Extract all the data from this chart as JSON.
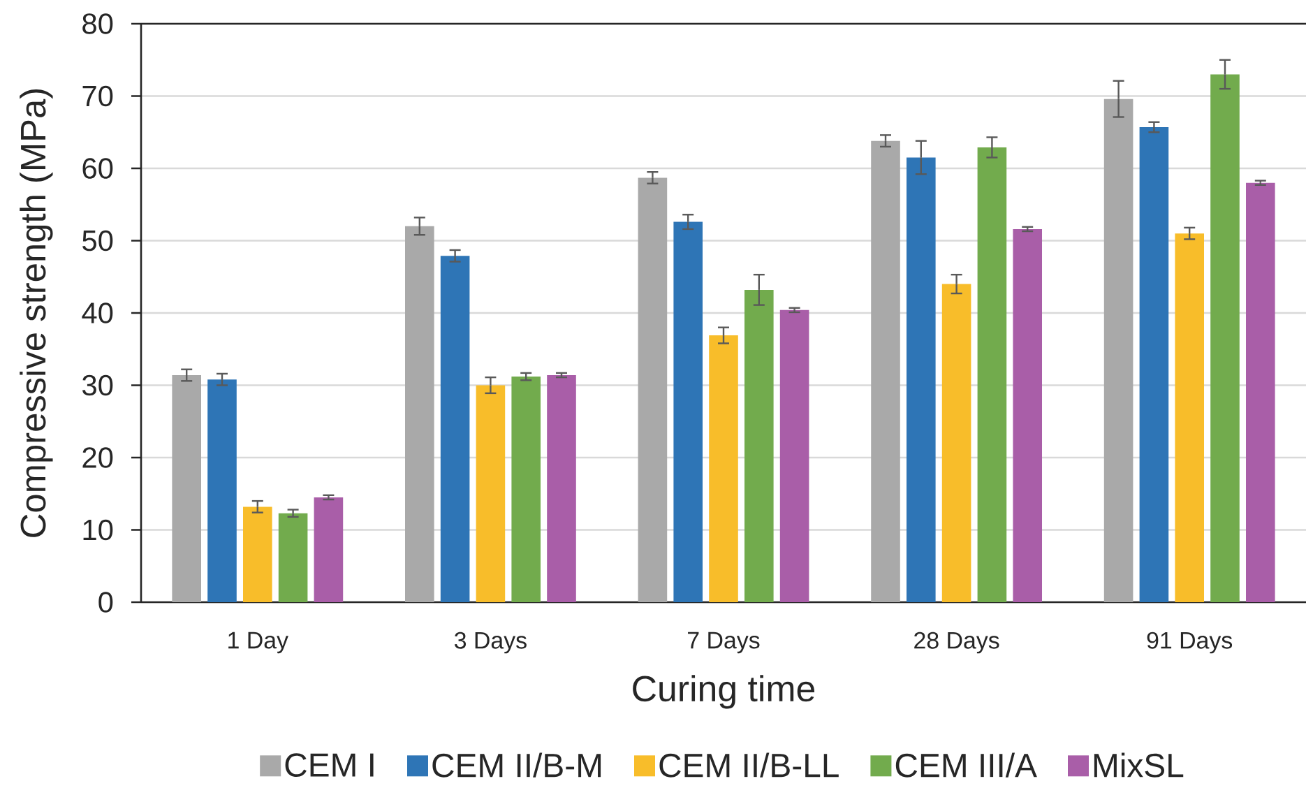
{
  "chart_data": {
    "type": "bar",
    "xlabel": "Curing time",
    "ylabel": "Compressive strength (MPa)",
    "categories": [
      "1 Day",
      "3 Days",
      "7 Days",
      "28 Days",
      "91 Days"
    ],
    "series": [
      {
        "name": "CEM I",
        "color": "#a9a9a9",
        "values": [
          31.4,
          52.0,
          58.7,
          63.8,
          69.6
        ],
        "errors": [
          0.8,
          1.2,
          0.8,
          0.8,
          2.5
        ]
      },
      {
        "name": "CEM II/B-M",
        "color": "#2e75b6",
        "values": [
          30.8,
          47.9,
          52.6,
          61.5,
          65.7
        ],
        "errors": [
          0.8,
          0.8,
          1.0,
          2.3,
          0.7
        ]
      },
      {
        "name": "CEM II/B-LL",
        "color": "#f8bd2a",
        "values": [
          13.2,
          30.0,
          36.9,
          44.0,
          51.0
        ],
        "errors": [
          0.8,
          1.1,
          1.1,
          1.3,
          0.8
        ]
      },
      {
        "name": "CEM III/A",
        "color": "#72ab4d",
        "values": [
          12.3,
          31.2,
          43.2,
          62.9,
          73.0
        ],
        "errors": [
          0.5,
          0.5,
          2.1,
          1.4,
          2.0
        ]
      },
      {
        "name": "MixSL",
        "color": "#a95ea8",
        "values": [
          14.5,
          31.4,
          40.4,
          51.6,
          58.0
        ],
        "errors": [
          0.3,
          0.3,
          0.3,
          0.3,
          0.3
        ]
      }
    ],
    "ylim": [
      0,
      80
    ],
    "yticks": [
      0,
      10,
      20,
      30,
      40,
      50,
      60,
      70,
      80
    ],
    "grid": "y",
    "legend": "bottom"
  }
}
